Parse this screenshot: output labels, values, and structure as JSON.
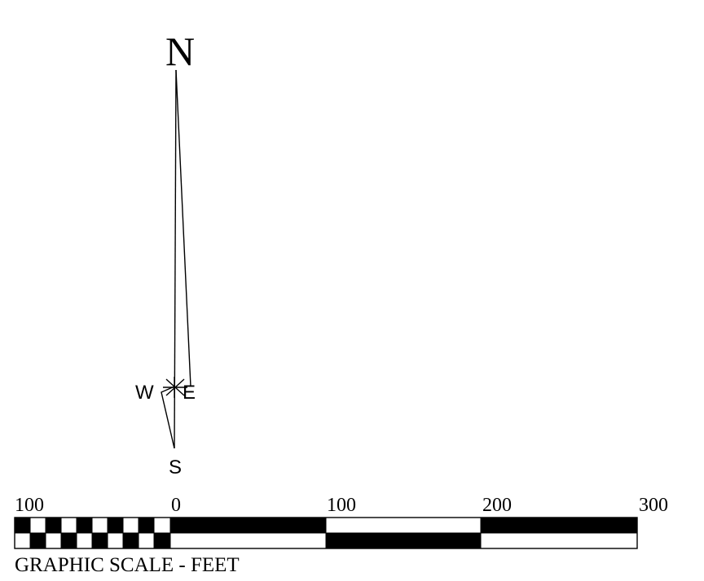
{
  "compass": {
    "north_label": "N",
    "south_label": "S",
    "west_label": "W",
    "east_label": "E"
  },
  "scale": {
    "tick_labels": [
      "100",
      "0",
      "100",
      "200",
      "300"
    ],
    "caption": "GRAPHIC SCALE - FEET",
    "units": "FEET",
    "colors": {
      "ink": "#000000",
      "paper": "#ffffff"
    }
  }
}
